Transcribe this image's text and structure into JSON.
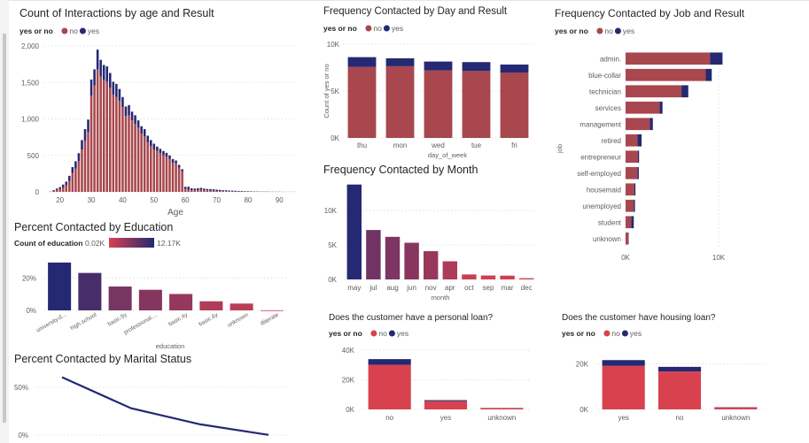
{
  "colors": {
    "no": "#a8474d",
    "no_bright": "#d8424f",
    "yes": "#252872",
    "line": "#252872"
  },
  "chart_data": [
    {
      "id": "age",
      "type": "bar",
      "title": "Count of Interactions by age and Result",
      "legend_title": "yes or no",
      "series": [
        {
          "name": "no"
        },
        {
          "name": "yes"
        }
      ],
      "xlabel": "Age",
      "ylabel": "",
      "xticks": [
        "20",
        "30",
        "40",
        "50",
        "60",
        "70",
        "80",
        "90"
      ],
      "yticks": [
        "0",
        "500",
        "1,000",
        "1,500",
        "2,000"
      ],
      "ylim": [
        0,
        2000
      ],
      "xlim": [
        15,
        95
      ],
      "x": [
        17,
        18,
        19,
        20,
        21,
        22,
        23,
        24,
        25,
        26,
        27,
        28,
        29,
        30,
        31,
        32,
        33,
        34,
        35,
        36,
        37,
        38,
        39,
        40,
        41,
        42,
        43,
        44,
        45,
        46,
        47,
        48,
        49,
        50,
        51,
        52,
        53,
        54,
        55,
        56,
        57,
        58,
        59,
        60,
        61,
        62,
        63,
        64,
        65,
        66,
        67,
        68,
        69,
        70,
        71,
        72,
        73,
        74,
        75,
        76,
        77,
        78,
        79,
        80,
        81,
        82,
        83,
        84,
        85,
        86,
        87,
        88,
        89,
        90,
        91,
        92,
        93,
        94,
        95
      ],
      "no": [
        2,
        15,
        25,
        40,
        60,
        90,
        150,
        260,
        320,
        420,
        580,
        700,
        820,
        1320,
        1460,
        1680,
        1580,
        1530,
        1510,
        1430,
        1330,
        1300,
        1250,
        1160,
        1040,
        1050,
        980,
        930,
        880,
        800,
        760,
        680,
        630,
        580,
        560,
        530,
        500,
        480,
        450,
        400,
        390,
        330,
        280,
        40,
        30,
        25,
        20,
        25,
        30,
        25,
        20,
        18,
        15,
        12,
        12,
        10,
        10,
        8,
        7,
        6,
        5,
        5,
        4,
        4,
        3,
        3,
        2,
        2,
        2,
        2,
        1,
        1,
        1,
        1,
        1,
        0,
        0,
        0,
        0
      ],
      "yes": [
        2,
        10,
        20,
        25,
        40,
        50,
        70,
        80,
        100,
        110,
        130,
        160,
        170,
        220,
        220,
        270,
        230,
        210,
        210,
        200,
        180,
        180,
        160,
        140,
        130,
        140,
        120,
        120,
        100,
        100,
        100,
        90,
        80,
        80,
        60,
        60,
        60,
        55,
        50,
        50,
        40,
        40,
        30,
        30,
        40,
        25,
        25,
        25,
        25,
        20,
        20,
        20,
        20,
        18,
        15,
        13,
        12,
        10,
        10,
        9,
        8,
        7,
        6,
        6,
        5,
        4,
        4,
        3,
        3,
        3,
        2,
        2,
        2,
        2,
        1,
        1,
        1,
        1,
        1
      ]
    },
    {
      "id": "day",
      "type": "bar",
      "title": "Frequency Contacted by Day and Result",
      "legend_title": "yes or no",
      "series": [
        {
          "name": "no"
        },
        {
          "name": "yes"
        }
      ],
      "categories": [
        "thu",
        "mon",
        "wed",
        "tue",
        "fri"
      ],
      "no": [
        7580,
        7650,
        7200,
        7140,
        6980
      ],
      "yes": [
        1040,
        850,
        950,
        950,
        850
      ],
      "xlabel": "day_of_week",
      "ylabel": "Count of yes or no",
      "yticks": [
        "0K",
        "5K",
        "10K"
      ],
      "ylim": [
        0,
        10000
      ]
    },
    {
      "id": "month",
      "type": "bar",
      "title": "Frequency Contacted by Month",
      "categories": [
        "may",
        "jul",
        "aug",
        "jun",
        "nov",
        "apr",
        "oct",
        "sep",
        "mar",
        "dec"
      ],
      "values": [
        13770,
        7170,
        6180,
        5320,
        4100,
        2630,
        720,
        570,
        550,
        180
      ],
      "yticks": [
        "0K",
        "5K",
        "10K"
      ],
      "ylim": [
        0,
        14500
      ],
      "xlabel": "month"
    },
    {
      "id": "job",
      "type": "bar",
      "orientation": "horizontal",
      "title": "Frequency Contacted by Job and Result",
      "legend_title": "yes or no",
      "series": [
        {
          "name": "no"
        },
        {
          "name": "yes"
        }
      ],
      "categories": [
        "admin.",
        "blue-collar",
        "technician",
        "services",
        "management",
        "retired",
        "entrepreneur",
        "self-employed",
        "housemaid",
        "unemployed",
        "student",
        "unknown"
      ],
      "no": [
        9070,
        8620,
        6010,
        3650,
        2600,
        1290,
        1330,
        1270,
        950,
        870,
        600,
        290
      ],
      "yes": [
        1350,
        640,
        730,
        320,
        330,
        430,
        120,
        150,
        110,
        140,
        280,
        40
      ],
      "ylabel": "job",
      "xticks": [
        "0K",
        "10K"
      ],
      "xlim": [
        0,
        10000
      ]
    },
    {
      "id": "education",
      "type": "bar",
      "title": "Percent Contacted by Education",
      "legend_title": "Count of education",
      "legend_min": "0.02K",
      "legend_max": "12.17K",
      "categories": [
        "university.d...",
        "high.school",
        "basic.9y",
        "professional....",
        "basic.4y",
        "basic.6y",
        "unknown",
        "illiterate"
      ],
      "values": [
        29.5,
        23.1,
        14.7,
        12.7,
        10.1,
        5.6,
        4.2,
        0.05
      ],
      "xlabel": "education",
      "yticks": [
        "0%",
        "20%"
      ],
      "ylim": [
        0,
        36
      ]
    },
    {
      "id": "marital",
      "type": "line",
      "title": "Percent Contacted by Marital Status",
      "values": [
        60.5,
        28.0,
        11.2,
        0.2
      ],
      "yticks": [
        "0%",
        "50%"
      ],
      "ylim": [
        0,
        62
      ]
    },
    {
      "id": "loan",
      "type": "bar",
      "title": "Does the customer have a personal loan?",
      "legend_title": "yes or no",
      "series": [
        {
          "name": "no"
        },
        {
          "name": "yes"
        }
      ],
      "categories": [
        "no",
        "yes",
        " unknown"
      ],
      "no": [
        30100,
        5570,
        880
      ],
      "yes": [
        3850,
        680,
        110
      ],
      "yticks": [
        "0K",
        "20K",
        "40K"
      ],
      "ylim": [
        0,
        40000
      ]
    },
    {
      "id": "housing",
      "type": "bar",
      "title": "Does the customer have housing loan?",
      "legend_title": "yes or no",
      "series": [
        {
          "name": "no"
        },
        {
          "name": "yes"
        }
      ],
      "categories": [
        "yes",
        "no",
        "unknown"
      ],
      "no": [
        19070,
        16600,
        880
      ],
      "yes": [
        2510,
        2030,
        110
      ],
      "yticks": [
        "0K",
        "20K"
      ],
      "ylim": [
        0,
        24000
      ]
    }
  ]
}
